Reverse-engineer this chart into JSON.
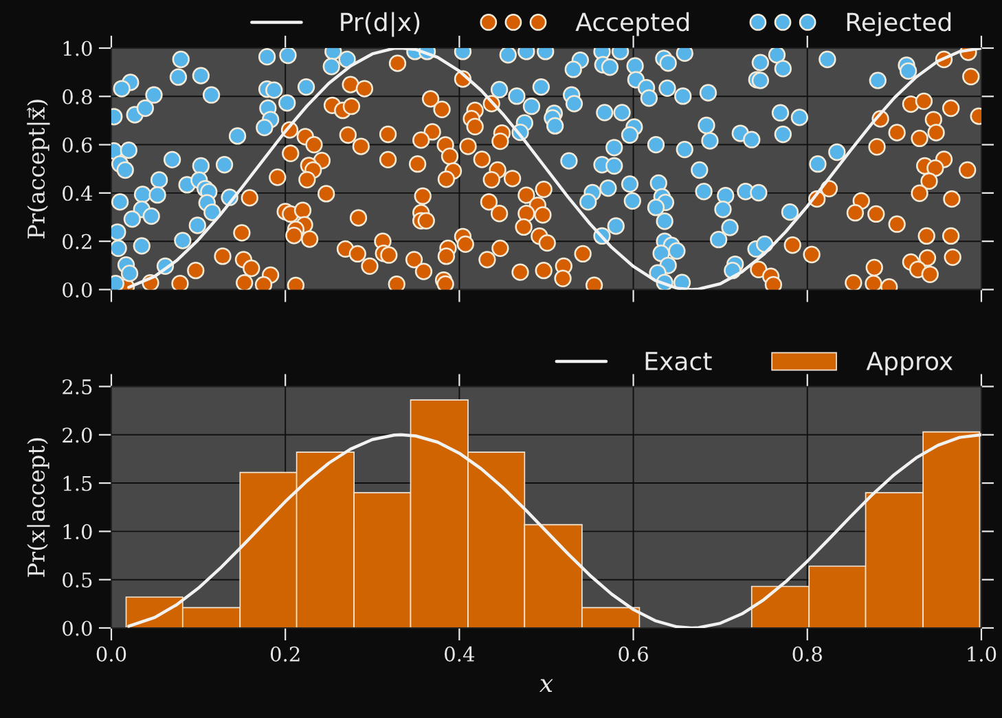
{
  "chart_data": [
    {
      "type": "scatter",
      "ylabel": "Pr(accept|x⃗)",
      "xlim": [
        0,
        1
      ],
      "ylim": [
        0,
        1
      ],
      "xticks": [
        0,
        0.2,
        0.4,
        0.6,
        0.8,
        1
      ],
      "yticks": [
        {
          "value": 0,
          "label": "0.0"
        },
        {
          "value": 0.2,
          "label": "0.2"
        },
        {
          "value": 0.4,
          "label": "0.4"
        },
        {
          "value": 0.6,
          "label": "0.6"
        },
        {
          "value": 0.8,
          "label": "0.8"
        },
        {
          "value": 1,
          "label": "1.0"
        }
      ],
      "tick_labels": "y",
      "grid": true,
      "legend": "top",
      "series": [
        {
          "name": "Pr(d|x)",
          "type": "line",
          "color": "#f2f2f2",
          "x": [
            0.02,
            0.05,
            0.075,
            0.1,
            0.125,
            0.15,
            0.175,
            0.2,
            0.225,
            0.25,
            0.275,
            0.3,
            0.325,
            0.333,
            0.35,
            0.375,
            0.4,
            0.425,
            0.45,
            0.475,
            0.5,
            0.525,
            0.55,
            0.575,
            0.6,
            0.625,
            0.65,
            0.667,
            0.675,
            0.7,
            0.725,
            0.75,
            0.775,
            0.8,
            0.825,
            0.85,
            0.875,
            0.9,
            0.925,
            0.95,
            0.975,
            1.0
          ],
          "values": [
            0.009,
            0.055,
            0.12,
            0.206,
            0.309,
            0.422,
            0.539,
            0.655,
            0.761,
            0.854,
            0.926,
            0.976,
            0.999,
            1.0,
            0.994,
            0.962,
            0.905,
            0.825,
            0.727,
            0.617,
            0.5,
            0.383,
            0.273,
            0.175,
            0.096,
            0.038,
            0.006,
            0.0,
            0.002,
            0.024,
            0.074,
            0.146,
            0.239,
            0.345,
            0.461,
            0.578,
            0.691,
            0.794,
            0.88,
            0.946,
            0.986,
            1.0
          ]
        },
        {
          "name": "Accepted",
          "marker": "circle",
          "color": "#d55e00",
          "x": [
            0.159,
            0.15,
            0.128,
            0.152,
            0.161,
            0.097,
            0.153,
            0.079,
            0.045,
            0.017,
            0.329,
            0.275,
            0.291,
            0.254,
            0.266,
            0.276,
            0.205,
            0.223,
            0.233,
            0.272,
            0.287,
            0.318,
            0.318,
            0.206,
            0.242,
            0.227,
            0.232,
            0.225,
            0.191,
            0.247,
            0.2,
            0.206,
            0.22,
            0.222,
            0.212,
            0.21,
            0.228,
            0.284,
            0.312,
            0.269,
            0.283,
            0.313,
            0.319,
            0.297,
            0.183,
            0.175,
            0.212,
            0.328,
            0.404,
            0.367,
            0.38,
            0.418,
            0.414,
            0.418,
            0.437,
            0.369,
            0.356,
            0.449,
            0.447,
            0.384,
            0.41,
            0.389,
            0.352,
            0.426,
            0.393,
            0.385,
            0.444,
            0.437,
            0.461,
            0.497,
            0.358,
            0.477,
            0.434,
            0.49,
            0.356,
            0.356,
            0.362,
            0.446,
            0.477,
            0.496,
            0.474,
            0.404,
            0.407,
            0.492,
            0.501,
            0.387,
            0.385,
            0.447,
            0.348,
            0.432,
            0.359,
            0.47,
            0.497,
            0.382,
            0.384,
            0.542,
            0.52,
            0.519,
            0.555,
            0.825,
            0.811,
            0.783,
            0.805,
            0.744,
            0.758,
            0.761,
            0.957,
            0.985,
            0.988,
            0.919,
            0.934,
            0.965,
            0.997,
            0.884,
            0.945,
            0.903,
            0.929,
            0.948,
            0.88,
            0.957,
            0.935,
            0.947,
            0.984,
            0.94,
            0.929,
            0.966,
            0.862,
            0.855,
            0.879,
            0.903,
            0.937,
            0.965,
            0.919,
            0.938,
            0.967,
            0.927,
            0.941,
            0.877,
            0.853,
            0.876,
            0.894
          ],
          "values": [
            0.38,
            0.235,
            0.138,
            0.124,
            0.088,
            0.079,
            0.028,
            0.025,
            0.028,
            0.011,
            0.937,
            0.849,
            0.832,
            0.763,
            0.742,
            0.759,
            0.661,
            0.633,
            0.6,
            0.64,
            0.593,
            0.643,
            0.538,
            0.564,
            0.534,
            0.514,
            0.495,
            0.455,
            0.465,
            0.397,
            0.323,
            0.313,
            0.328,
            0.268,
            0.249,
            0.224,
            0.209,
            0.297,
            0.2,
            0.168,
            0.148,
            0.15,
            0.143,
            0.097,
            0.06,
            0.02,
            0.017,
            0.022,
            0.872,
            0.79,
            0.746,
            0.742,
            0.708,
            0.675,
            0.77,
            0.653,
            0.619,
            0.648,
            0.614,
            0.599,
            0.593,
            0.552,
            0.52,
            0.539,
            0.491,
            0.457,
            0.495,
            0.455,
            0.46,
            0.415,
            0.387,
            0.391,
            0.363,
            0.349,
            0.318,
            0.285,
            0.285,
            0.315,
            0.315,
            0.309,
            0.259,
            0.219,
            0.188,
            0.221,
            0.193,
            0.171,
            0.138,
            0.171,
            0.124,
            0.124,
            0.075,
            0.072,
            0.079,
            0.039,
            0.023,
            0.148,
            0.097,
            0.046,
            0.018,
            0.418,
            0.375,
            0.184,
            0.145,
            0.083,
            0.055,
            0.02,
            0.953,
            0.983,
            0.882,
            0.768,
            0.78,
            0.751,
            0.718,
            0.707,
            0.704,
            0.65,
            0.626,
            0.65,
            0.591,
            0.539,
            0.512,
            0.503,
            0.495,
            0.449,
            0.399,
            0.375,
            0.367,
            0.318,
            0.313,
            0.271,
            0.222,
            0.222,
            0.114,
            0.131,
            0.134,
            0.083,
            0.063,
            0.091,
            0.028,
            0.025,
            0.011
          ]
        },
        {
          "name": "Rejected",
          "marker": "circle",
          "color": "#56b4e9",
          "x": [
            0.08,
            0.077,
            0.103,
            0.022,
            0.012,
            0.049,
            0.115,
            0.003,
            0.027,
            0.039,
            0.145,
            0.003,
            0.02,
            0.01,
            0.016,
            0.07,
            0.103,
            0.13,
            0.055,
            0.087,
            0.101,
            0.108,
            0.112,
            0.036,
            0.053,
            0.01,
            0.136,
            0.11,
            0.116,
            0.035,
            0.024,
            0.046,
            0.007,
            0.099,
            0.082,
            0.008,
            0.035,
            0.017,
            0.021,
            0.062,
            0.005,
            0.179,
            0.203,
            0.255,
            0.271,
            0.253,
            0.179,
            0.187,
            0.224,
            0.202,
            0.18,
            0.183,
            0.176,
            0.349,
            0.363,
            0.404,
            0.456,
            0.477,
            0.499,
            0.446,
            0.466,
            0.494,
            0.483,
            0.475,
            0.47,
            0.539,
            0.531,
            0.564,
            0.565,
            0.573,
            0.585,
            0.602,
            0.635,
            0.64,
            0.659,
            0.603,
            0.615,
            0.618,
            0.639,
            0.657,
            0.529,
            0.532,
            0.509,
            0.507,
            0.51,
            0.567,
            0.587,
            0.601,
            0.596,
            0.578,
            0.626,
            0.659,
            0.526,
            0.564,
            0.578,
            0.596,
            0.571,
            0.629,
            0.553,
            0.548,
            0.599,
            0.633,
            0.637,
            0.626,
            0.636,
            0.58,
            0.564,
            0.636,
            0.644,
            0.65,
            0.632,
            0.64,
            0.628,
            0.636,
            0.656,
            0.765,
            0.746,
            0.772,
            0.742,
            0.746,
            0.823,
            0.686,
            0.769,
            0.791,
            0.684,
            0.688,
            0.723,
            0.736,
            0.772,
            0.676,
            0.812,
            0.834,
            0.681,
            0.706,
            0.729,
            0.744,
            0.703,
            0.78,
            0.711,
            0.698,
            0.741,
            0.751,
            0.717,
            0.714,
            0.881,
            0.914,
            0.916
          ],
          "values": [
            0.953,
            0.88,
            0.886,
            0.858,
            0.832,
            0.806,
            0.806,
            0.716,
            0.724,
            0.751,
            0.636,
            0.574,
            0.577,
            0.52,
            0.495,
            0.538,
            0.512,
            0.517,
            0.454,
            0.434,
            0.453,
            0.418,
            0.405,
            0.394,
            0.392,
            0.363,
            0.382,
            0.359,
            0.32,
            0.332,
            0.292,
            0.304,
            0.238,
            0.266,
            0.203,
            0.171,
            0.181,
            0.102,
            0.067,
            0.097,
            0.025,
            0.964,
            0.97,
            0.986,
            0.953,
            0.924,
            0.83,
            0.826,
            0.839,
            0.773,
            0.751,
            0.704,
            0.671,
            0.986,
            0.986,
            0.986,
            0.972,
            0.986,
            0.986,
            0.828,
            0.801,
            0.839,
            0.759,
            0.69,
            0.651,
            0.95,
            0.912,
            0.986,
            0.931,
            0.921,
            0.986,
            0.926,
            0.957,
            0.938,
            0.979,
            0.869,
            0.836,
            0.793,
            0.834,
            0.801,
            0.806,
            0.77,
            0.73,
            0.711,
            0.678,
            0.733,
            0.733,
            0.673,
            0.64,
            0.588,
            0.6,
            0.58,
            0.533,
            0.517,
            0.512,
            0.437,
            0.42,
            0.441,
            0.401,
            0.363,
            0.367,
            0.384,
            0.361,
            0.34,
            0.283,
            0.263,
            0.222,
            0.2,
            0.183,
            0.16,
            0.15,
            0.1,
            0.069,
            0.029,
            0.029,
            0.972,
            0.94,
            0.915,
            0.869,
            0.866,
            0.953,
            0.815,
            0.732,
            0.713,
            0.68,
            0.616,
            0.647,
            0.621,
            0.643,
            0.495,
            0.52,
            0.569,
            0.406,
            0.389,
            0.406,
            0.401,
            0.332,
            0.321,
            0.257,
            0.207,
            0.168,
            0.188,
            0.105,
            0.079,
            0.866,
            0.929,
            0.905
          ]
        }
      ]
    },
    {
      "type": "histogram",
      "xlabel": "x",
      "ylabel": "Pr(x|accept)",
      "xlim": [
        0,
        1
      ],
      "ylim": [
        0,
        2.5
      ],
      "xticks": [
        {
          "value": 0,
          "label": "0.0"
        },
        {
          "value": 0.2,
          "label": "0.2"
        },
        {
          "value": 0.4,
          "label": "0.4"
        },
        {
          "value": 0.6,
          "label": "0.6"
        },
        {
          "value": 0.8,
          "label": "0.8"
        },
        {
          "value": 1,
          "label": "1.0"
        }
      ],
      "yticks": [
        {
          "value": 0,
          "label": "0.0"
        },
        {
          "value": 0.5,
          "label": "0.5"
        },
        {
          "value": 1,
          "label": "1.0"
        },
        {
          "value": 1.5,
          "label": "1.5"
        },
        {
          "value": 2,
          "label": "2.0"
        },
        {
          "value": 2.5,
          "label": "2.5"
        }
      ],
      "grid": true,
      "legend": "top right",
      "series": [
        {
          "name": "Exact",
          "type": "line",
          "color": "#f2f2f2",
          "x": [
            0.02,
            0.05,
            0.075,
            0.1,
            0.125,
            0.15,
            0.175,
            0.2,
            0.225,
            0.25,
            0.275,
            0.3,
            0.325,
            0.333,
            0.35,
            0.375,
            0.4,
            0.425,
            0.45,
            0.475,
            0.5,
            0.525,
            0.55,
            0.575,
            0.6,
            0.625,
            0.65,
            0.667,
            0.675,
            0.7,
            0.725,
            0.75,
            0.775,
            0.8,
            0.825,
            0.85,
            0.875,
            0.9,
            0.925,
            0.95,
            0.975,
            1.0
          ],
          "values": [
            0.018,
            0.109,
            0.24,
            0.412,
            0.617,
            0.844,
            1.078,
            1.309,
            1.522,
            1.707,
            1.852,
            1.951,
            1.997,
            2.0,
            1.988,
            1.924,
            1.809,
            1.649,
            1.454,
            1.233,
            1.0,
            0.767,
            0.546,
            0.351,
            0.191,
            0.076,
            0.012,
            0.0,
            0.003,
            0.049,
            0.147,
            0.293,
            0.478,
            0.691,
            0.922,
            1.156,
            1.383,
            1.588,
            1.761,
            1.891,
            1.973,
            2.0
          ]
        },
        {
          "name": "Approx",
          "color": "#cf6400",
          "bins": [
            0.017,
            0.082,
            0.148,
            0.213,
            0.279,
            0.344,
            0.41,
            0.475,
            0.541,
            0.607,
            0.736,
            0.802,
            0.867,
            0.933,
            0.998
          ],
          "values": [
            0.32,
            0.21,
            1.61,
            1.82,
            1.4,
            2.36,
            1.82,
            1.07,
            0.21,
            0,
            0.43,
            0.64,
            1.4,
            2.03
          ]
        }
      ]
    }
  ]
}
